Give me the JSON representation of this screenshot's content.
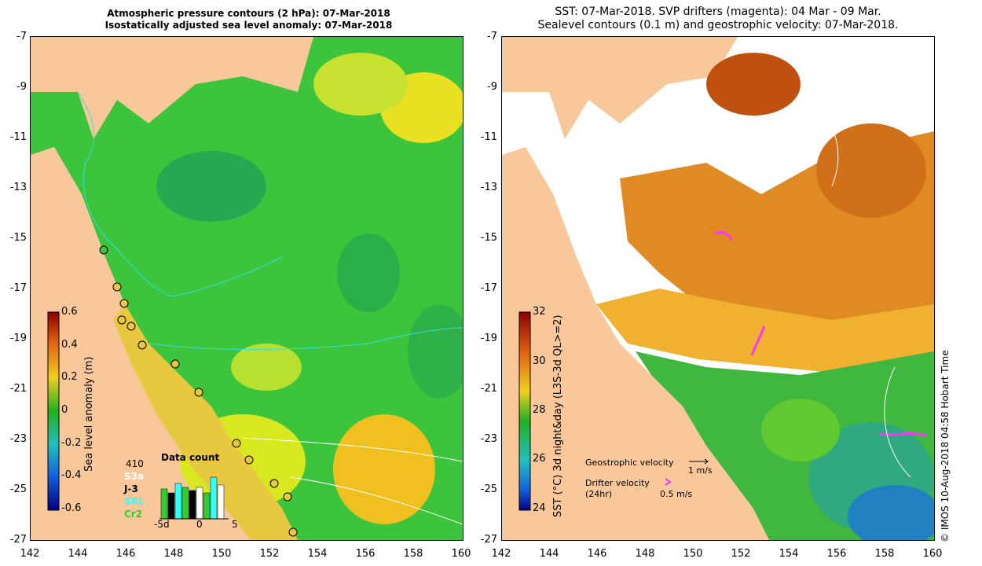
{
  "left_panel": {
    "title_line1": "Atmospheric pressure contours (2 hPa): 07-Mar-2018",
    "title_line2": "Isostatically adjusted sea level anomaly: 07-Mar-2018",
    "colorbar": {
      "label": "Sea level anomaly (m)",
      "ticks": [
        "0.6",
        "0.4",
        "0.2",
        "0",
        "-0.2",
        "-0.4",
        "-0.6"
      ]
    },
    "data_count": {
      "title": "Data count",
      "total": "410",
      "missions": [
        "S3a",
        "J-3",
        "SRL",
        "Cr2"
      ],
      "mission_colors": [
        "#ffffff",
        "#000000",
        "#33ffff",
        "#33cc33"
      ],
      "x_ticks": [
        "-5d",
        "0",
        "5"
      ]
    }
  },
  "right_panel": {
    "title_line1": "SST: 07-Mar-2018. SVP drifters (magenta): 04 Mar - 09 Mar.",
    "title_line2": "Sealevel contours (0.1 m) and geostrophic velocity: 07-Mar-2018.",
    "colorbar": {
      "label": "SST (°C) 3d night&day (L3S-3d QL>=2)",
      "ticks": [
        "32",
        "30",
        "28",
        "26",
        "24"
      ]
    },
    "legend": {
      "geostrophic_label": "Geostrophic velocity",
      "geostrophic_scale": "1 m/s",
      "drifter_label": "Drifter velocity",
      "drifter_sub": "(24hr)",
      "drifter_scale": "0.5 m/s"
    },
    "credit": "© IMOS 10-Aug-2018 04:58 Hobart Time"
  },
  "axes": {
    "lat_ticks": [
      "-7",
      "-9",
      "-11",
      "-13",
      "-15",
      "-17",
      "-19",
      "-21",
      "-23",
      "-25",
      "-27"
    ],
    "lon_ticks": [
      "142",
      "144",
      "146",
      "148",
      "150",
      "152",
      "154",
      "156",
      "158",
      "160"
    ]
  },
  "colors": {
    "land": "#f8c89a",
    "ocean_green": "#3cc43c",
    "ocean_yellow": "#d8e820",
    "sst_orange": "#d8801c",
    "drifter": "#ff33ff",
    "coast_line": "#33dddd"
  }
}
